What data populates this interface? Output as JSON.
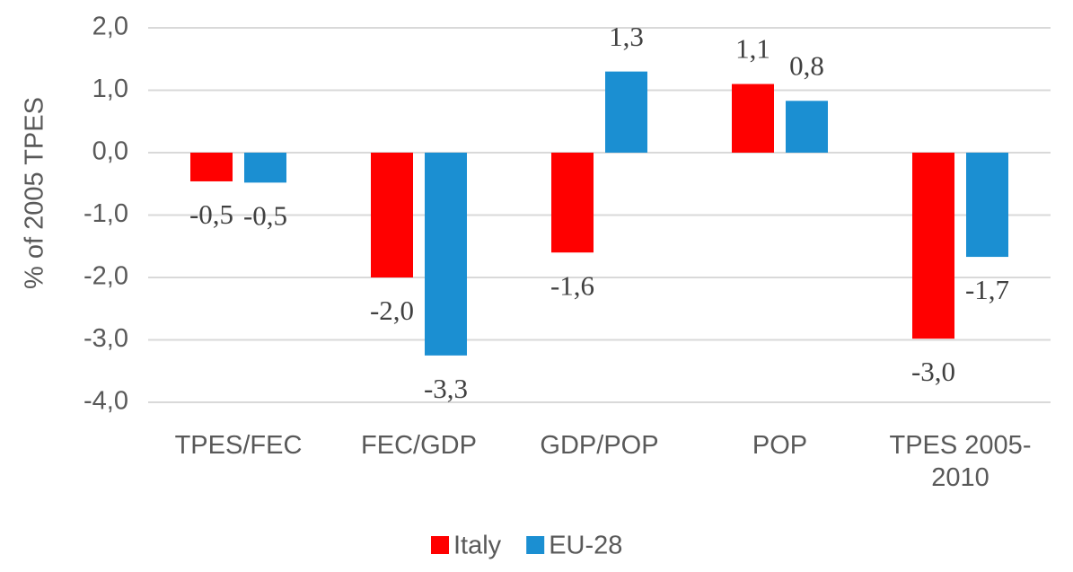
{
  "chart_data": {
    "type": "bar",
    "y_label": "% of 2005 TPES",
    "categories": [
      "TPES/FEC",
      "FEC/GDP",
      "GDP/POP",
      "POP",
      "TPES 2005-2010"
    ],
    "series": [
      {
        "name": "Italy",
        "color": "#ff0000",
        "values": [
          -0.46,
          -2.0,
          -1.6,
          1.1,
          -2.98
        ],
        "value_labels": [
          "-0,5",
          "-2,0",
          "-1,6",
          "1,1",
          "-3,0"
        ]
      },
      {
        "name": "EU-28",
        "color": "#1b8fd2",
        "values": [
          -0.48,
          -3.25,
          1.3,
          0.83,
          -1.67
        ],
        "value_labels": [
          "-0,5",
          "-3,3",
          "1,3",
          "0,8",
          "-1,7"
        ]
      }
    ],
    "ylim": [
      -4,
      2
    ],
    "yticks": [
      {
        "value": -4,
        "label": "-4,0"
      },
      {
        "value": -3,
        "label": "-3,0"
      },
      {
        "value": -2,
        "label": "-2,0"
      },
      {
        "value": -1,
        "label": "-1,0"
      },
      {
        "value": 0,
        "label": "0,0"
      },
      {
        "value": 1,
        "label": "1,0"
      },
      {
        "value": 2,
        "label": "2,0"
      }
    ],
    "grid": true,
    "legend": "bottom"
  }
}
